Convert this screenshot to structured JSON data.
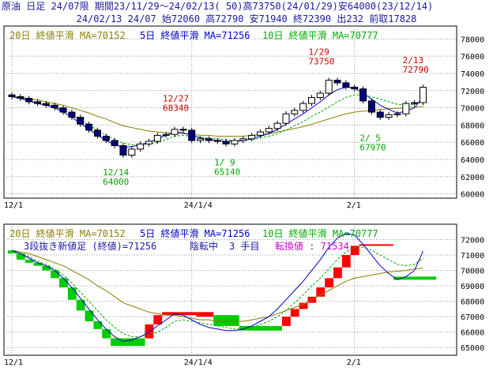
{
  "header": {
    "line1": "原油 日足 24/07限 期間23/11/29〜24/02/13( 50)高73750(24/01/29)安64000(23/12/14)",
    "line2": "24/02/13 24/07 始72060 高72790 安71940 終72390 出232 前取17828"
  },
  "colors": {
    "ma20": "#8b7d00",
    "ma5": "#0000cc",
    "ma10": "#00aa00",
    "bull": "#ff0000",
    "bear": "#00cc00",
    "candle_down": "#000080",
    "ann_red": "#cc0000",
    "ann_green": "#00aa00",
    "grid": "#999999"
  },
  "chart_data": [
    {
      "type": "candlestick",
      "legend": [
        "20日 終値平滑 MA=70152",
        "5日 終値平滑 MA=71256",
        "10日 終値平滑 MA=70777"
      ],
      "y_ticks": [
        60000,
        62000,
        64000,
        66000,
        68000,
        70000,
        72000,
        74000,
        76000,
        78000
      ],
      "ylim": [
        59500,
        79500
      ],
      "x_ticks": [
        {
          "i": 1,
          "label": "12/1"
        },
        {
          "i": 22,
          "label": "24/1/4"
        },
        {
          "i": 41,
          "label": "2/1"
        }
      ],
      "annotations": [
        {
          "i": 13,
          "label": "12/14",
          "value": "64000",
          "color": "green",
          "pos": "below",
          "y": 64000
        },
        {
          "i": 20,
          "label": "12/27",
          "value": "68340",
          "color": "red",
          "pos": "above",
          "y": 68340
        },
        {
          "i": 26,
          "label": "1/ 9",
          "value": "65140",
          "color": "green",
          "pos": "below",
          "y": 65140
        },
        {
          "i": 37,
          "label": "1/29",
          "value": "73750",
          "color": "red",
          "pos": "above",
          "y": 73750
        },
        {
          "i": 43,
          "label": "2/ 5",
          "value": "67970",
          "color": "green",
          "pos": "below",
          "y": 67970
        },
        {
          "i": 48,
          "label": "2/13",
          "value": "72790",
          "color": "red",
          "pos": "above",
          "y": 72790
        }
      ],
      "close": [
        71300,
        71100,
        70700,
        70500,
        70300,
        70000,
        69500,
        68900,
        68100,
        67400,
        66700,
        66200,
        65600,
        64500,
        65200,
        65800,
        66100,
        66800,
        66900,
        67500,
        67400,
        66200,
        66400,
        66200,
        66100,
        65800,
        66200,
        66400,
        66800,
        67200,
        67600,
        68200,
        69300,
        69700,
        70500,
        71200,
        71700,
        73200,
        72900,
        72400,
        72200,
        70800,
        69500,
        68900,
        69200,
        69300,
        70500,
        70600,
        72390
      ],
      "ma20": [
        71300,
        71200,
        71100,
        70900,
        70700,
        70500,
        70300,
        70000,
        69700,
        69400,
        69000,
        68700,
        68300,
        67900,
        67700,
        67500,
        67300,
        67200,
        67100,
        67100,
        67000,
        66900,
        66800,
        66800,
        66700,
        66700,
        66700,
        66700,
        66800,
        66900,
        67000,
        67200,
        67400,
        67600,
        67800,
        68100,
        68400,
        68700,
        69000,
        69300,
        69500,
        69600,
        69700,
        69800,
        69900,
        69950,
        70000,
        70100,
        70152
      ],
      "ma5": [
        71300,
        71100,
        70800,
        70500,
        70300,
        70000,
        69500,
        68900,
        68200,
        67500,
        66800,
        66200,
        65700,
        65400,
        65500,
        65700,
        66000,
        66400,
        66800,
        67200,
        67100,
        66800,
        66500,
        66300,
        66200,
        66100,
        66100,
        66200,
        66400,
        66700,
        67000,
        67500,
        68100,
        68700,
        69300,
        70000,
        70700,
        71500,
        72100,
        72400,
        72300,
        71700,
        71000,
        70300,
        69800,
        69400,
        69600,
        70000,
        71256
      ],
      "ma10": [
        71300,
        71100,
        70900,
        70600,
        70400,
        70100,
        69700,
        69200,
        68600,
        68000,
        67400,
        66800,
        66300,
        65900,
        65700,
        65700,
        65800,
        66000,
        66300,
        66700,
        66800,
        66700,
        66600,
        66500,
        66400,
        66300,
        66200,
        66200,
        66300,
        66500,
        66700,
        67000,
        67400,
        67900,
        68400,
        69000,
        69500,
        70100,
        70700,
        71200,
        71500,
        71500,
        71300,
        71000,
        70700,
        70400,
        70300,
        70400,
        70777
      ]
    },
    {
      "type": "three-line-break",
      "legend": [
        "20日 終値平滑 MA=70152",
        "5日 終値平滑 MA=71256",
        "10日 終値平滑 MA=70777"
      ],
      "subtitle": [
        "3段抜き新値足 (終値)=71256",
        "陰転中",
        "3 手目",
        "転換値 : 71534"
      ],
      "y_ticks": [
        65000,
        66000,
        67000,
        68000,
        69000,
        70000,
        71000,
        72000
      ],
      "ylim": [
        64500,
        73000
      ],
      "x_ticks": [
        {
          "i": 1,
          "label": "12/1"
        },
        {
          "i": 22,
          "label": "24/1/4"
        },
        {
          "i": 41,
          "label": "2/1"
        }
      ],
      "bricks": [
        {
          "s": 1,
          "e": 2,
          "lo": 71100,
          "hi": 71300,
          "d": "down"
        },
        {
          "s": 2,
          "e": 3,
          "lo": 70700,
          "hi": 71100,
          "d": "down"
        },
        {
          "s": 3,
          "e": 4,
          "lo": 70500,
          "hi": 70700,
          "d": "down"
        },
        {
          "s": 4,
          "e": 5,
          "lo": 70300,
          "hi": 70500,
          "d": "down"
        },
        {
          "s": 5,
          "e": 6,
          "lo": 70000,
          "hi": 70300,
          "d": "down"
        },
        {
          "s": 6,
          "e": 7,
          "lo": 69500,
          "hi": 70000,
          "d": "down"
        },
        {
          "s": 7,
          "e": 8,
          "lo": 68900,
          "hi": 69500,
          "d": "down"
        },
        {
          "s": 8,
          "e": 9,
          "lo": 68100,
          "hi": 68900,
          "d": "down"
        },
        {
          "s": 9,
          "e": 10,
          "lo": 67400,
          "hi": 68100,
          "d": "down"
        },
        {
          "s": 10,
          "e": 11,
          "lo": 66700,
          "hi": 67400,
          "d": "down"
        },
        {
          "s": 11,
          "e": 12,
          "lo": 66200,
          "hi": 66700,
          "d": "down"
        },
        {
          "s": 12,
          "e": 13,
          "lo": 65600,
          "hi": 66200,
          "d": "down"
        },
        {
          "s": 13,
          "e": 17,
          "lo": 65100,
          "hi": 65600,
          "d": "down"
        },
        {
          "s": 17,
          "e": 18,
          "lo": 65600,
          "hi": 66500,
          "d": "up"
        },
        {
          "s": 18,
          "e": 19,
          "lo": 66500,
          "hi": 67100,
          "d": "up"
        },
        {
          "s": 19,
          "e": 23,
          "lo": 67100,
          "hi": 67300,
          "d": "up"
        },
        {
          "s": 23,
          "e": 25,
          "lo": 67000,
          "hi": 67300,
          "d": "up"
        },
        {
          "s": 25,
          "e": 28,
          "lo": 66400,
          "hi": 67100,
          "d": "down"
        },
        {
          "s": 28,
          "e": 33,
          "lo": 66100,
          "hi": 66400,
          "d": "down"
        },
        {
          "s": 33,
          "e": 34,
          "lo": 66400,
          "hi": 67000,
          "d": "up"
        },
        {
          "s": 34,
          "e": 35,
          "lo": 67000,
          "hi": 67500,
          "d": "up"
        },
        {
          "s": 35,
          "e": 36,
          "lo": 67500,
          "hi": 67900,
          "d": "up"
        },
        {
          "s": 36,
          "e": 37,
          "lo": 67900,
          "hi": 68300,
          "d": "up"
        },
        {
          "s": 37,
          "e": 38,
          "lo": 68300,
          "hi": 68900,
          "d": "up"
        },
        {
          "s": 38,
          "e": 39,
          "lo": 68900,
          "hi": 69500,
          "d": "up"
        },
        {
          "s": 39,
          "e": 40,
          "lo": 69500,
          "hi": 70200,
          "d": "up"
        },
        {
          "s": 40,
          "e": 41,
          "lo": 70200,
          "hi": 71000,
          "d": "up"
        },
        {
          "s": 41,
          "e": 42,
          "lo": 71000,
          "hi": 71600,
          "d": "up"
        },
        {
          "s": 42,
          "e": 46,
          "lo": 71600,
          "hi": 71700,
          "d": "up"
        },
        {
          "s": 46,
          "e": 51,
          "lo": 69400,
          "hi": 69600,
          "d": "down"
        }
      ]
    }
  ]
}
